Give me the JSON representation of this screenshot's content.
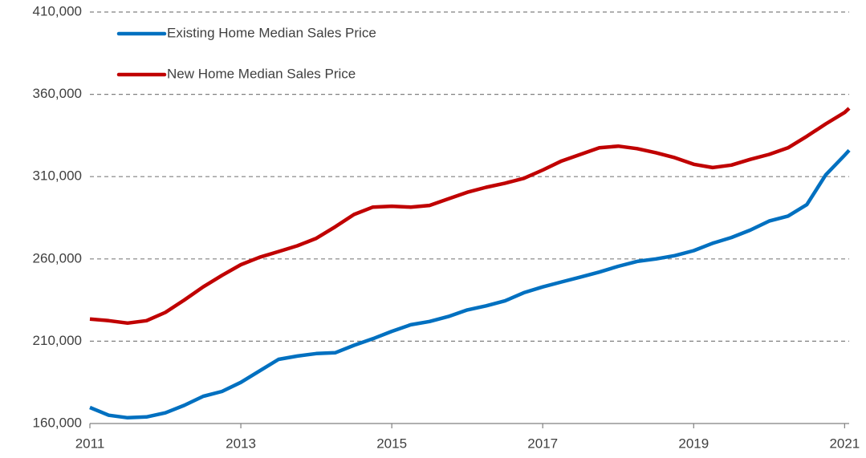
{
  "chart_data": {
    "type": "line",
    "x": [
      2011,
      2011.25,
      2011.5,
      2011.75,
      2012,
      2012.25,
      2012.5,
      2012.75,
      2013,
      2013.25,
      2013.5,
      2013.75,
      2014,
      2014.25,
      2014.5,
      2014.75,
      2015,
      2015.25,
      2015.5,
      2015.75,
      2016,
      2016.25,
      2016.5,
      2016.75,
      2017,
      2017.25,
      2017.5,
      2017.75,
      2018,
      2018.25,
      2018.5,
      2018.75,
      2019,
      2019.25,
      2019.5,
      2019.75,
      2020,
      2020.25,
      2020.5,
      2020.75,
      2021,
      2021.06
    ],
    "series": [
      {
        "name": "Existing Home Median Sales Price",
        "color": "#0070c0",
        "values": [
          169750,
          165000,
          163500,
          164000,
          166500,
          171000,
          176500,
          179500,
          185000,
          192000,
          199000,
          201000,
          202500,
          203000,
          207500,
          211500,
          216000,
          220000,
          222000,
          225000,
          229000,
          231500,
          234500,
          239500,
          243000,
          246000,
          249000,
          252000,
          255500,
          258500,
          260000,
          262000,
          265000,
          269500,
          273000,
          277500,
          283000,
          286000,
          293000,
          311000,
          323000,
          326000
        ]
      },
      {
        "name": "New Home Median Sales Price",
        "color": "#c00000",
        "values": [
          223500,
          222500,
          221000,
          222500,
          227500,
          235000,
          243000,
          250000,
          256500,
          261000,
          264500,
          268000,
          272500,
          279500,
          287000,
          291500,
          292000,
          291500,
          292500,
          296500,
          300500,
          303500,
          306000,
          309000,
          314000,
          319500,
          323500,
          327500,
          328500,
          327000,
          324500,
          321500,
          317500,
          315500,
          317000,
          320500,
          323500,
          327500,
          334500,
          342000,
          349000,
          351500
        ]
      }
    ],
    "xlim": [
      2011,
      2021.06
    ],
    "xticks": [
      2011,
      2013,
      2015,
      2017,
      2019,
      2021
    ],
    "ylim": [
      160000,
      410000
    ],
    "yticks": [
      {
        "value": 160000,
        "label": "160,000"
      },
      {
        "value": 210000,
        "label": "210,000"
      },
      {
        "value": 260000,
        "label": "260,000"
      },
      {
        "value": 310000,
        "label": "310,000"
      },
      {
        "value": 360000,
        "label": "360,000"
      },
      {
        "value": 410000,
        "label": "410,000"
      }
    ],
    "grid": true,
    "legend": "upper left"
  }
}
